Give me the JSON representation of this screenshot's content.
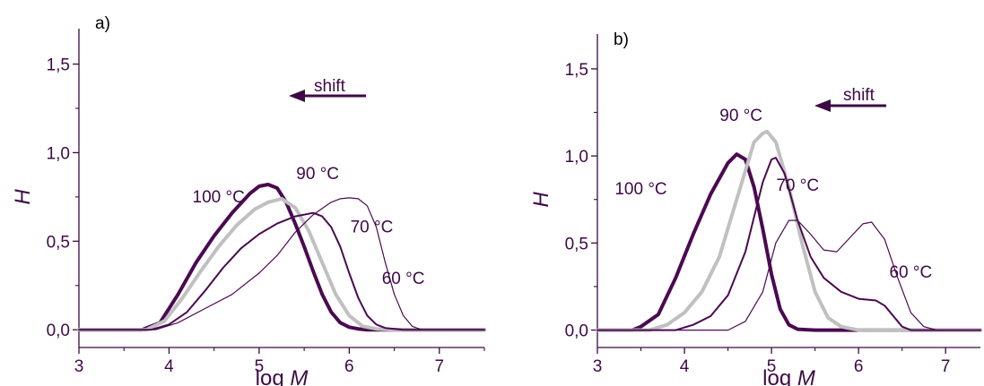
{
  "colors": {
    "axis": "#3d0a45",
    "curve_dark": "#4a0a50",
    "curve_gray": "#c0c0c0",
    "text": "#3d0a45"
  },
  "chart_data": [
    {
      "type": "line",
      "panel_label": "a)",
      "xlabel_prefix": "log ",
      "xlabel_var": "M",
      "ylabel": "H",
      "xlim": [
        3,
        7.5
      ],
      "ylim": [
        -0.1,
        1.7
      ],
      "xticks": [
        "3",
        "4",
        "5",
        "6",
        "7"
      ],
      "yticks": [
        "0,0",
        "0,5",
        "1,0",
        "1,5"
      ],
      "annotation": "shift",
      "series": [
        {
          "name": "100 °C",
          "color": "#4a0a50",
          "width": 4,
          "x": [
            3.0,
            3.7,
            3.9,
            4.1,
            4.3,
            4.5,
            4.7,
            4.9,
            5.0,
            5.1,
            5.2,
            5.3,
            5.4,
            5.5,
            5.6,
            5.7,
            5.8,
            5.9,
            6.0,
            6.1,
            6.2,
            6.4,
            7.5
          ],
          "y": [
            0.0,
            0.0,
            0.04,
            0.2,
            0.38,
            0.53,
            0.66,
            0.77,
            0.81,
            0.82,
            0.8,
            0.72,
            0.6,
            0.47,
            0.33,
            0.2,
            0.1,
            0.04,
            0.015,
            0.005,
            0.0,
            0.0,
            0.0
          ]
        },
        {
          "name": "90 °C",
          "color": "#c0c0c0",
          "width": 4,
          "x": [
            3.0,
            3.75,
            3.95,
            4.15,
            4.35,
            4.55,
            4.75,
            4.95,
            5.1,
            5.25,
            5.4,
            5.55,
            5.7,
            5.85,
            6.0,
            6.15,
            6.3,
            6.5,
            7.5
          ],
          "y": [
            0.0,
            0.0,
            0.05,
            0.18,
            0.33,
            0.47,
            0.59,
            0.68,
            0.72,
            0.74,
            0.69,
            0.56,
            0.38,
            0.2,
            0.08,
            0.02,
            0.005,
            0.0,
            0.0
          ]
        },
        {
          "name": "70 °C",
          "color": "#4a0a50",
          "width": 2,
          "x": [
            3.0,
            3.8,
            4.0,
            4.2,
            4.4,
            4.6,
            4.8,
            5.0,
            5.2,
            5.4,
            5.6,
            5.7,
            5.8,
            5.9,
            6.0,
            6.1,
            6.2,
            6.3,
            6.4,
            6.6,
            7.5
          ],
          "y": [
            0.0,
            0.0,
            0.03,
            0.1,
            0.22,
            0.35,
            0.46,
            0.54,
            0.6,
            0.64,
            0.66,
            0.64,
            0.58,
            0.47,
            0.32,
            0.18,
            0.08,
            0.03,
            0.01,
            0.0,
            0.0
          ]
        },
        {
          "name": "60 °C",
          "color": "#4a0a50",
          "width": 1.2,
          "x": [
            3.0,
            3.85,
            4.1,
            4.4,
            4.7,
            5.0,
            5.2,
            5.4,
            5.6,
            5.8,
            5.9,
            6.0,
            6.1,
            6.2,
            6.3,
            6.4,
            6.5,
            6.6,
            6.7,
            6.8,
            7.5
          ],
          "y": [
            0.0,
            0.0,
            0.04,
            0.12,
            0.2,
            0.32,
            0.42,
            0.55,
            0.65,
            0.72,
            0.74,
            0.745,
            0.74,
            0.7,
            0.58,
            0.38,
            0.2,
            0.08,
            0.02,
            0.0,
            0.0
          ]
        }
      ],
      "labels": [
        {
          "series": "100 °C",
          "x": 4.55,
          "y": 0.72
        },
        {
          "series": "90 °C",
          "x": 5.65,
          "y": 0.85
        },
        {
          "series": "70 °C",
          "x": 6.25,
          "y": 0.55
        },
        {
          "series": "60 °C",
          "x": 6.6,
          "y": 0.26
        }
      ]
    },
    {
      "type": "line",
      "panel_label": "b)",
      "xlabel_prefix": "log ",
      "xlabel_var": "M",
      "ylabel": "H",
      "xlim": [
        3,
        7.4
      ],
      "ylim": [
        -0.1,
        1.7
      ],
      "xticks": [
        "3",
        "4",
        "5",
        "6",
        "7"
      ],
      "yticks": [
        "0,0",
        "0,5",
        "1,0",
        "1,5"
      ],
      "annotation": "shift",
      "series": [
        {
          "name": "100 °C",
          "color": "#4a0a50",
          "width": 4,
          "x": [
            3.0,
            3.4,
            3.5,
            3.7,
            3.9,
            4.1,
            4.3,
            4.5,
            4.6,
            4.7,
            4.8,
            4.9,
            5.0,
            5.1,
            5.2,
            5.3,
            5.5,
            7.4
          ],
          "y": [
            0.0,
            0.0,
            0.02,
            0.09,
            0.3,
            0.55,
            0.78,
            0.96,
            1.01,
            0.98,
            0.82,
            0.58,
            0.32,
            0.12,
            0.03,
            0.005,
            0.0,
            0.0
          ]
        },
        {
          "name": "90 °C",
          "color": "#c0c0c0",
          "width": 4,
          "x": [
            3.0,
            3.6,
            3.8,
            4.0,
            4.2,
            4.4,
            4.6,
            4.8,
            4.9,
            4.95,
            5.05,
            5.2,
            5.35,
            5.5,
            5.65,
            5.8,
            6.0,
            7.4
          ],
          "y": [
            0.0,
            0.0,
            0.03,
            0.1,
            0.22,
            0.42,
            0.75,
            1.08,
            1.13,
            1.14,
            1.08,
            0.82,
            0.5,
            0.22,
            0.07,
            0.02,
            0.0,
            0.0
          ]
        },
        {
          "name": "70 °C",
          "color": "#4a0a50",
          "width": 2,
          "x": [
            3.0,
            3.9,
            4.1,
            4.3,
            4.5,
            4.7,
            4.9,
            5.0,
            5.05,
            5.15,
            5.3,
            5.45,
            5.6,
            5.8,
            6.0,
            6.2,
            6.3,
            6.4,
            6.5,
            6.6,
            6.7,
            7.4
          ],
          "y": [
            0.0,
            0.0,
            0.03,
            0.08,
            0.2,
            0.45,
            0.85,
            0.98,
            0.99,
            0.9,
            0.63,
            0.42,
            0.3,
            0.22,
            0.18,
            0.17,
            0.14,
            0.08,
            0.02,
            0.0,
            0.0,
            0.0
          ]
        },
        {
          "name": "60 °C",
          "color": "#4a0a50",
          "width": 1.2,
          "x": [
            3.0,
            4.5,
            4.7,
            4.9,
            5.05,
            5.2,
            5.3,
            5.45,
            5.6,
            5.75,
            5.9,
            6.05,
            6.15,
            6.3,
            6.45,
            6.6,
            6.75,
            6.9,
            7.4
          ],
          "y": [
            0.0,
            0.0,
            0.05,
            0.22,
            0.5,
            0.63,
            0.63,
            0.55,
            0.46,
            0.45,
            0.53,
            0.61,
            0.62,
            0.52,
            0.3,
            0.1,
            0.02,
            0.0,
            0.0
          ]
        }
      ],
      "labels": [
        {
          "series": "100 °C",
          "x": 3.5,
          "y": 0.78
        },
        {
          "series": "90 °C",
          "x": 4.65,
          "y": 1.2
        },
        {
          "series": "70 °C",
          "x": 5.3,
          "y": 0.8
        },
        {
          "series": "60 °C",
          "x": 6.6,
          "y": 0.3
        }
      ]
    }
  ]
}
